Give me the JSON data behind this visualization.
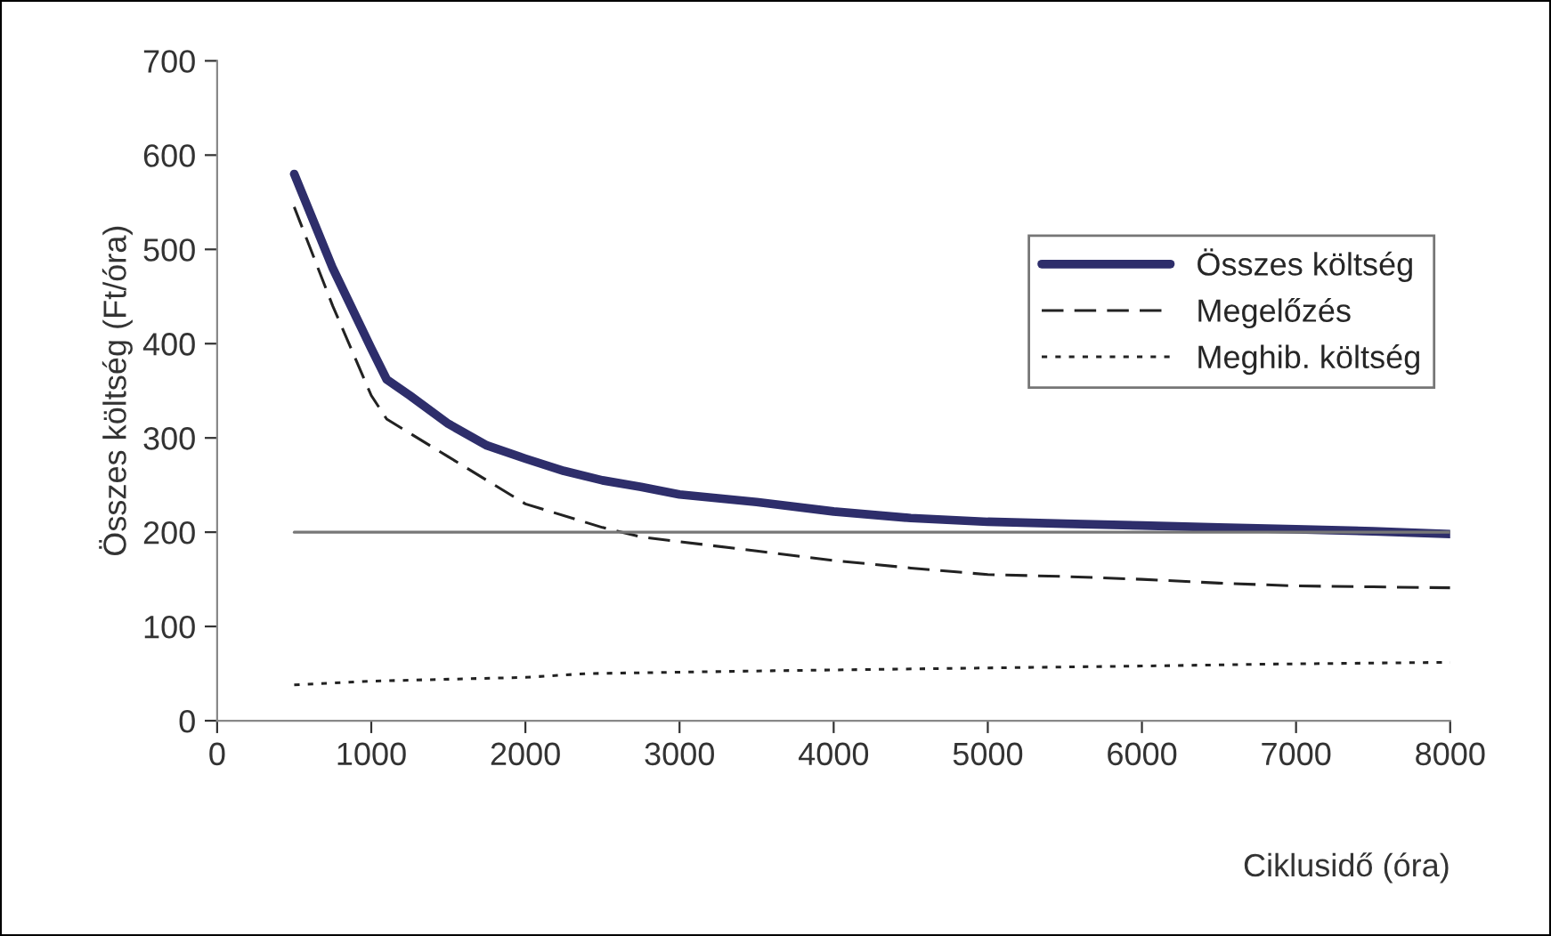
{
  "chart_data": {
    "type": "line",
    "xlabel": "Ciklusidő (óra)",
    "ylabel": "Összes költség (Ft/óra)",
    "xlim": [
      0,
      8000
    ],
    "xticks": [
      0,
      1000,
      2000,
      3000,
      4000,
      5000,
      6000,
      7000,
      8000
    ],
    "ylim": [
      0,
      700
    ],
    "yticks": [
      0,
      100,
      200,
      300,
      400,
      500,
      600,
      700
    ],
    "grid": false,
    "legend": "right",
    "series": [
      {
        "name": "Összes költség",
        "color": "#2e2e6b",
        "line_style": "solid",
        "x": [
          500,
          750,
          1000,
          1100,
          1250,
          1500,
          1750,
          2000,
          2250,
          2500,
          2750,
          3000,
          3500,
          4000,
          4500,
          5000,
          5500,
          6000,
          6500,
          7000,
          7500,
          8000
        ],
        "values": [
          580,
          480,
          395,
          362,
          345,
          315,
          292,
          278,
          265,
          255,
          248,
          240,
          232,
          222,
          215,
          211,
          209,
          207,
          205,
          203,
          201,
          198
        ]
      },
      {
        "name": "Megelőzés",
        "color": "#222222",
        "line_style": "dashed",
        "x": [
          500,
          750,
          1000,
          1100,
          1500,
          2000,
          2500,
          2750,
          3000,
          3500,
          4000,
          4500,
          5000,
          5500,
          6000,
          6500,
          7000,
          7500,
          8000
        ],
        "values": [
          545,
          440,
          345,
          320,
          280,
          230,
          205,
          195,
          190,
          180,
          170,
          162,
          155,
          153,
          150,
          146,
          143,
          142,
          141
        ]
      },
      {
        "name": "Meghib. költség",
        "color": "#222222",
        "line_style": "dotted",
        "x": [
          500,
          1000,
          2000,
          2400,
          3600,
          5000,
          6000,
          6800,
          8000
        ],
        "values": [
          38,
          42,
          46,
          50,
          53,
          56,
          58,
          60,
          62
        ]
      },
      {
        "color": "#777777",
        "line_style": "solid",
        "x": [
          500,
          8000
        ],
        "values": [
          200,
          200
        ]
      }
    ]
  }
}
